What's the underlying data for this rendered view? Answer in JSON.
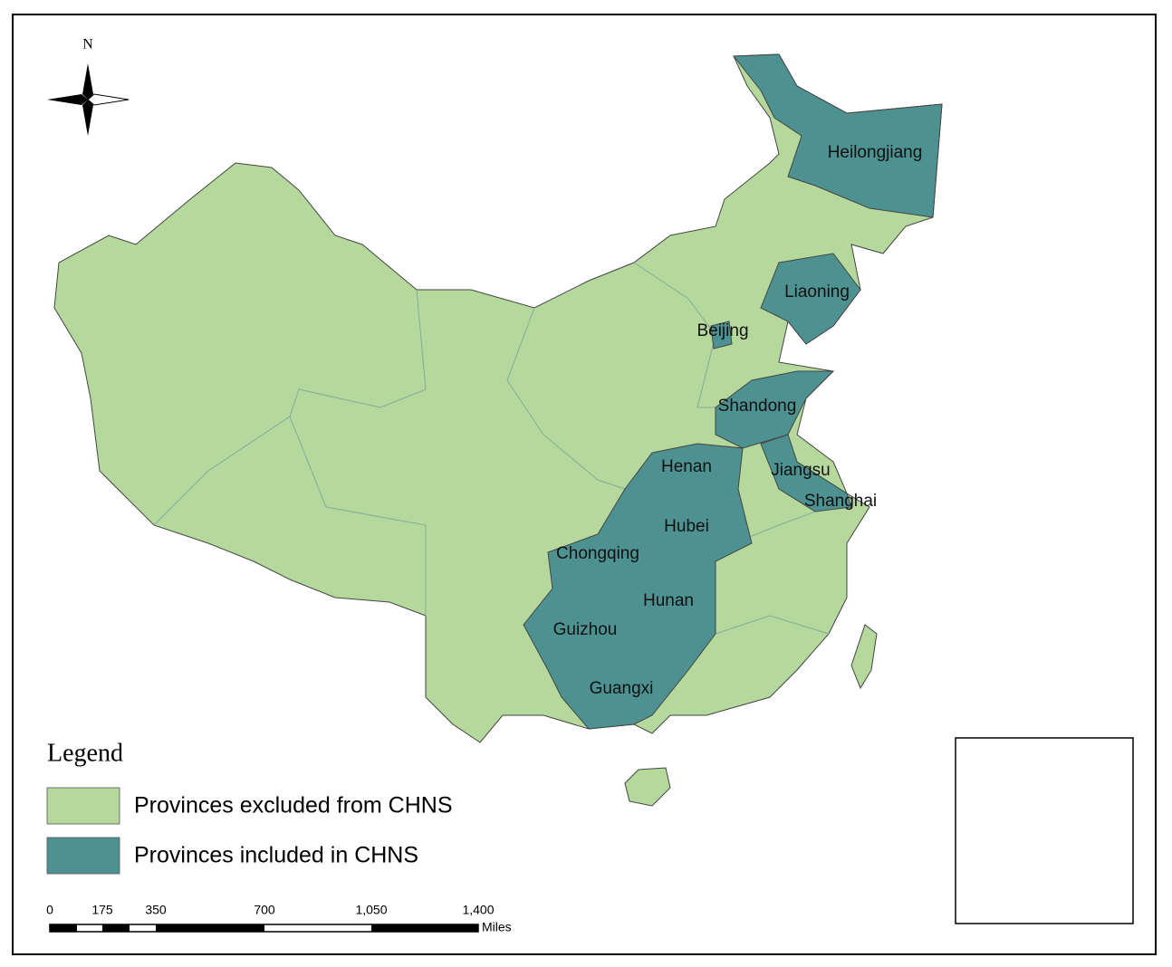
{
  "map": {
    "north_label": "N",
    "province_labels": [
      "Heilongjiang",
      "Liaoning",
      "Beijing",
      "Shandong",
      "Henan",
      "Jiangsu",
      "Shanghai",
      "Hubei",
      "Chongqing",
      "Hunan",
      "Guizhou",
      "Guangxi"
    ],
    "legend": {
      "title": "Legend",
      "items": [
        {
          "label": "Provinces excluded from CHNS",
          "color": "#b5d99c"
        },
        {
          "label": "Provinces included in CHNS",
          "color": "#4e9191"
        }
      ]
    },
    "scale_bar": {
      "ticks": [
        "0",
        "175",
        "350",
        "700",
        "1,050",
        "1,400"
      ],
      "unit": "Miles"
    }
  }
}
